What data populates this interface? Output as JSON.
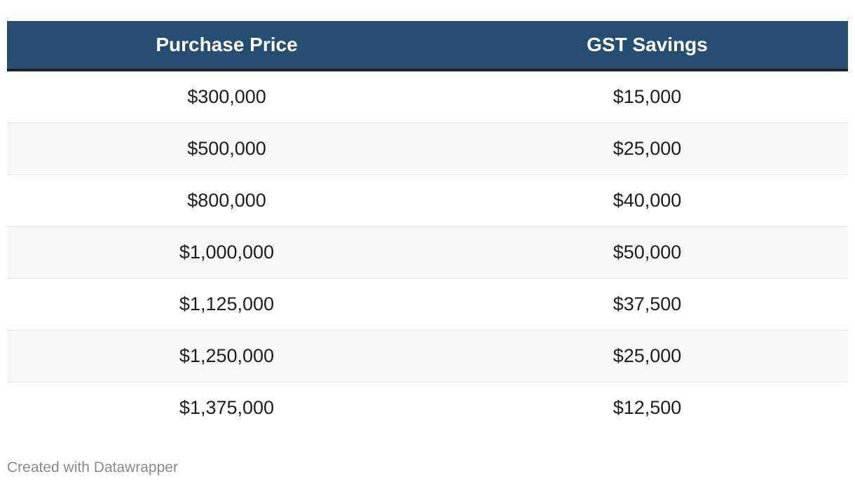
{
  "chart_data": {
    "type": "table",
    "columns": [
      "Purchase Price",
      "GST Savings"
    ],
    "rows": [
      [
        "$300,000",
        "$15,000"
      ],
      [
        "$500,000",
        "$25,000"
      ],
      [
        "$800,000",
        "$40,000"
      ],
      [
        "$1,000,000",
        "$50,000"
      ],
      [
        "$1,125,000",
        "$37,500"
      ],
      [
        "$1,250,000",
        "$25,000"
      ],
      [
        "$1,375,000",
        "$12,500"
      ]
    ],
    "header_color": "#264e72",
    "stripe_color": "#f7f7f7"
  },
  "footer": {
    "credit": "Created with Datawrapper"
  }
}
